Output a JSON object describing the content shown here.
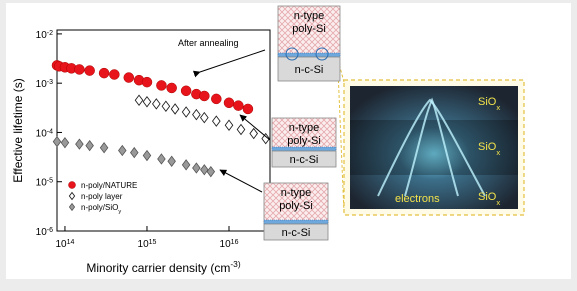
{
  "chart_data": {
    "type": "scatter",
    "x_label": "Minority carrier density (cm^-3)",
    "y_label": "Effective lifetime (s)",
    "x_log": true,
    "y_log": true,
    "xlim": [
      80000000000000,
      31600000000000000
    ],
    "ylim": [
      1e-06,
      0.012
    ],
    "xticks": [
      {
        "value": 100000000000000,
        "label": "10^14"
      },
      {
        "value": 1000000000000000,
        "label": "10^15"
      },
      {
        "value": 10000000000000000,
        "label": "10^16"
      }
    ],
    "yticks": [
      {
        "value": 1e-06,
        "label": "10^-6"
      },
      {
        "value": 1e-05,
        "label": "10^-5"
      },
      {
        "value": 0.0001,
        "label": "10^-4"
      },
      {
        "value": 0.001,
        "label": "10^-3"
      },
      {
        "value": 0.01,
        "label": "10^-2"
      }
    ],
    "legend": "lower left",
    "annotation": "After annealing",
    "series": [
      {
        "name": "n-poly/NATURE",
        "color": "#e8141b",
        "marker": "circle",
        "x": [
          80000000000000,
          85000000000000,
          100000000000000,
          120000000000000,
          150000000000000,
          200000000000000,
          300000000000000,
          400000000000000,
          600000000000000,
          800000000000000,
          1000000000000000,
          1500000000000000,
          2000000000000000,
          3000000000000000,
          4000000000000000,
          5000000000000000,
          7000000000000000,
          10000000000000000,
          13000000000000000,
          17000000000000000
        ],
        "values": [
          0.0023,
          0.0022,
          0.0021,
          0.002,
          0.0019,
          0.0018,
          0.0016,
          0.0015,
          0.0013,
          0.00115,
          0.00105,
          0.0009,
          0.0008,
          0.0007,
          0.0006,
          0.00055,
          0.00048,
          0.0004,
          0.00035,
          0.0003
        ]
      },
      {
        "name": "n-poly layer",
        "color": "#222222",
        "marker": "diamond-open",
        "x": [
          800000000000000,
          1000000000000000,
          1300000000000000,
          1700000000000000,
          2200000000000000,
          3000000000000000,
          4000000000000000,
          5000000000000000,
          7000000000000000,
          10000000000000000,
          14000000000000000,
          20000000000000000,
          28000000000000000
        ],
        "values": [
          0.00045,
          0.00042,
          0.00038,
          0.00034,
          0.0003,
          0.00026,
          0.00023,
          0.0002,
          0.00017,
          0.00014,
          0.000115,
          9.5e-05,
          7.5e-05
        ]
      },
      {
        "name": "n-poly/SiO_y",
        "color": "#555555",
        "marker": "diamond",
        "x": [
          80000000000000,
          100000000000000,
          150000000000000,
          200000000000000,
          300000000000000,
          500000000000000,
          700000000000000,
          1000000000000000,
          1500000000000000,
          2000000000000000,
          3000000000000000,
          4000000000000000,
          5000000000000000,
          6000000000000000
        ],
        "values": [
          6.5e-05,
          6.2e-05,
          5.8e-05,
          5.4e-05,
          4.9e-05,
          4.3e-05,
          3.9e-05,
          3.4e-05,
          2.9e-05,
          2.6e-05,
          2.2e-05,
          1.9e-05,
          1.75e-05,
          1.6e-05
        ]
      }
    ]
  },
  "stacks": [
    {
      "top": [
        "n-type",
        "poly-Si"
      ],
      "bottom": "n-c-Si"
    },
    {
      "top": [
        "n-type",
        "poly-Si"
      ],
      "bottom": "n-c-Si"
    },
    {
      "top": [
        "n-type",
        "poly-Si"
      ],
      "bottom": "n-c-Si"
    }
  ],
  "illustration": {
    "layers": [
      "SiO_x",
      "SiO_x",
      "SiO_x"
    ],
    "caption": "electrons"
  }
}
